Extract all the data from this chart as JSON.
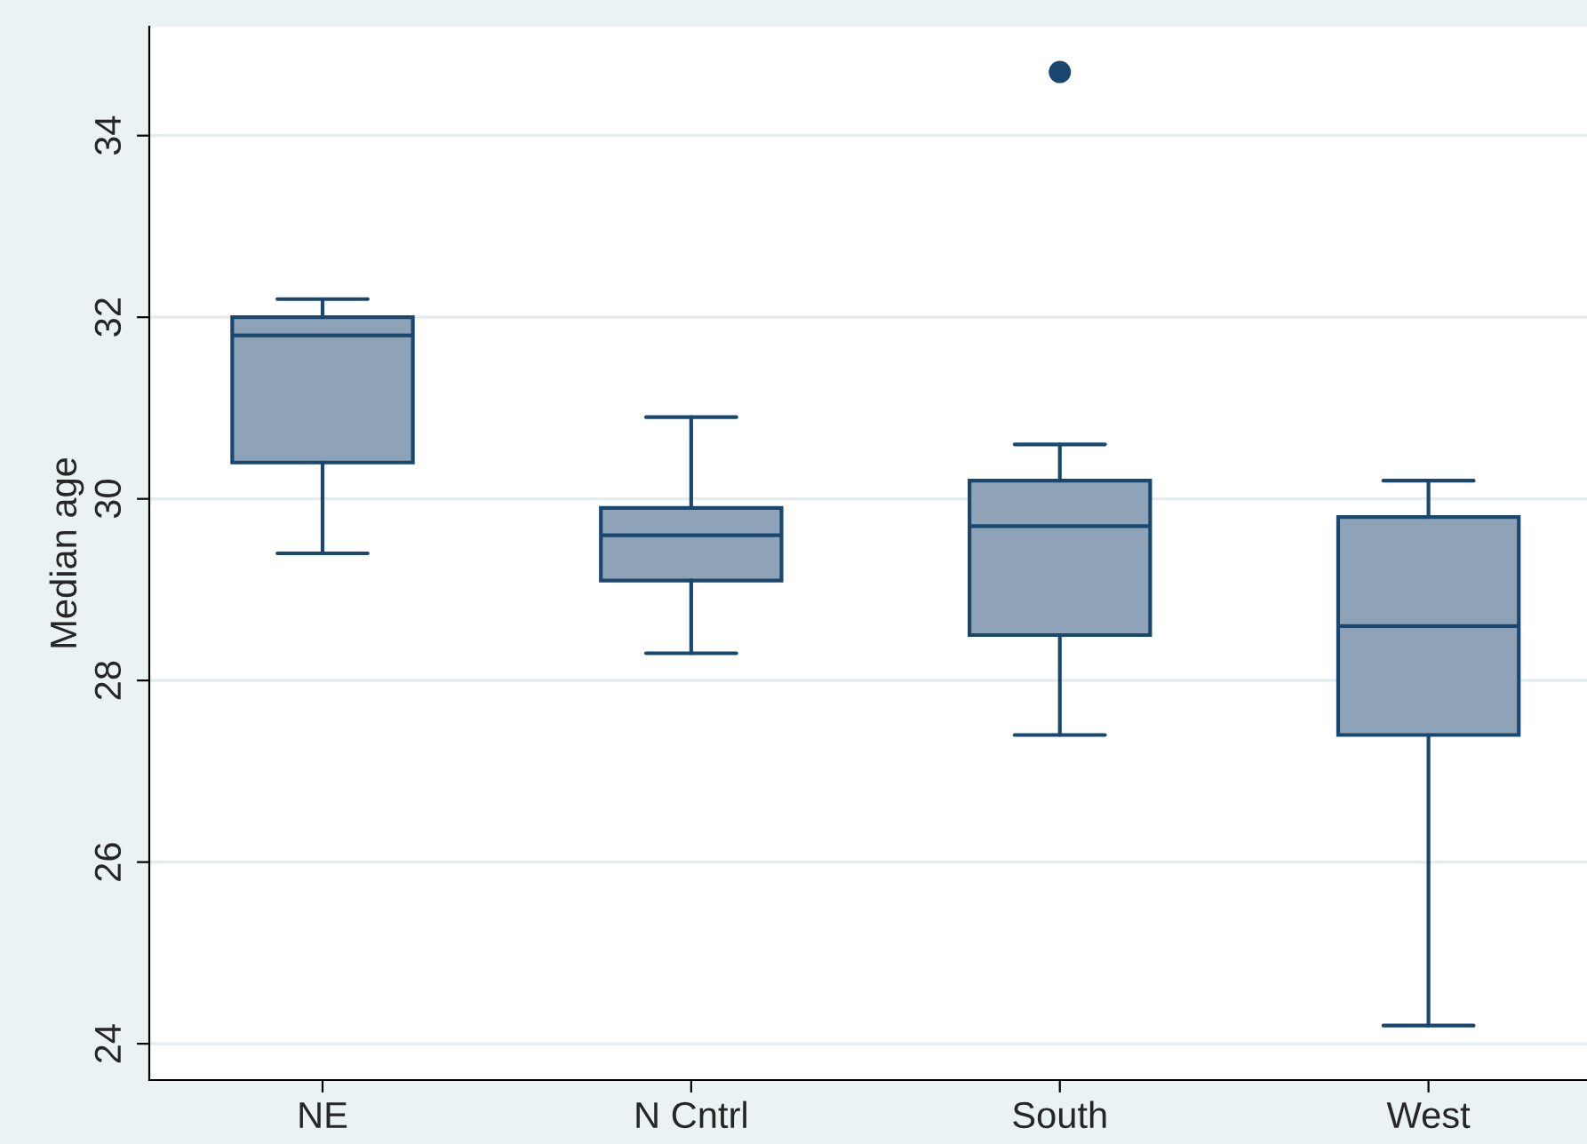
{
  "chart_data": {
    "type": "box",
    "ylabel": "Median age",
    "categories": [
      "NE",
      "N Cntrl",
      "South",
      "West"
    ],
    "boxes": [
      {
        "low": 29.4,
        "q1": 30.4,
        "median": 31.8,
        "q3": 32.0,
        "high": 32.2
      },
      {
        "low": 28.3,
        "q1": 29.1,
        "median": 29.6,
        "q3": 29.9,
        "high": 30.9
      },
      {
        "low": 27.4,
        "q1": 28.5,
        "median": 29.7,
        "q3": 30.2,
        "high": 30.6,
        "outliers": [
          34.7
        ]
      },
      {
        "low": 24.2,
        "q1": 27.4,
        "median": 28.6,
        "q3": 29.8,
        "high": 30.2
      }
    ],
    "color": "#8ea3b8",
    "ylim": [
      23.6,
      35.2
    ],
    "yticks": [
      24,
      26,
      28,
      30,
      32,
      34
    ],
    "grid": "y"
  }
}
